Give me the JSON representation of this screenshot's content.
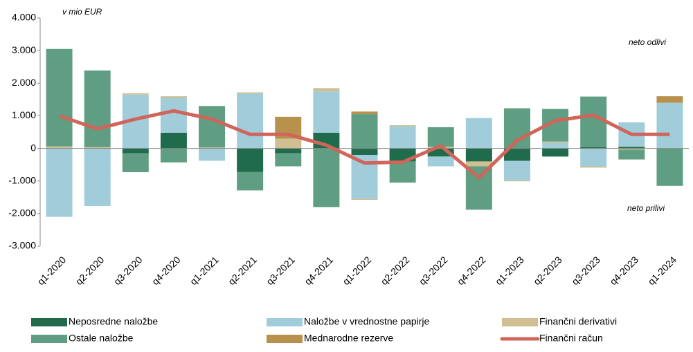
{
  "chart_data": {
    "type": "bar",
    "annotations": {
      "unit": "v mio EUR",
      "top": "neto odlivi",
      "bottom": "neto prilivi"
    },
    "categories": [
      "q1-2020",
      "q2-2020",
      "q3-2020",
      "q4-2020",
      "q1-2021",
      "q2-2021",
      "q3-2021",
      "q4-2021",
      "q1-2022",
      "q2-2022",
      "q3-2022",
      "q4-2022",
      "q1-2023",
      "q2-2023",
      "q3-2023",
      "q4-2023",
      "q1-2024"
    ],
    "series": [
      {
        "name": "Neposredne naložbe",
        "color": "#1f6b4b",
        "values": [
          0,
          0,
          -150,
          480,
          0,
          -720,
          -150,
          480,
          -200,
          -400,
          -250,
          -400,
          -380,
          -250,
          40,
          50,
          0
        ]
      },
      {
        "name": "Naložbe v vrednostne papirje",
        "color": "#a1cddb",
        "values": [
          -2100,
          -1770,
          1650,
          1070,
          -380,
          1680,
          0,
          1270,
          -1350,
          680,
          -300,
          930,
          -600,
          170,
          -550,
          750,
          1400
        ]
      },
      {
        "name": "Finančni derivativi",
        "color": "#cfbf91",
        "values": [
          60,
          40,
          40,
          50,
          30,
          40,
          300,
          100,
          -30,
          30,
          50,
          -150,
          -30,
          40,
          -40,
          -40,
          0
        ]
      },
      {
        "name": "Ostale naložbe",
        "color": "#5f9e82",
        "values": [
          2990,
          2350,
          -580,
          -430,
          1270,
          -570,
          -400,
          -1800,
          1050,
          -650,
          600,
          -1330,
          1230,
          1000,
          1550,
          -300,
          -1150
        ]
      },
      {
        "name": "Mednarodne rezerve",
        "color": "#b8924c",
        "values": [
          0,
          0,
          0,
          0,
          0,
          0,
          670,
          0,
          80,
          0,
          0,
          0,
          0,
          0,
          0,
          0,
          200
        ]
      }
    ],
    "line": {
      "name": "Finančni račun",
      "color": "#d0655a",
      "values": [
        1000,
        600,
        900,
        1150,
        900,
        430,
        430,
        100,
        -450,
        -420,
        80,
        -900,
        250,
        850,
        1020,
        430,
        430
      ]
    },
    "ylim": [
      -3000,
      4000
    ],
    "yticks": [
      {
        "value": -3000,
        "label": "-3.000"
      },
      {
        "value": -2000,
        "label": "-2.000"
      },
      {
        "value": -1000,
        "label": "-1.000"
      },
      0,
      {
        "value": 1000,
        "label": "1.000"
      },
      {
        "value": 2000,
        "label": "2.000"
      },
      {
        "value": 3000,
        "label": "3.000"
      },
      {
        "value": 4000,
        "label": "4.000"
      }
    ],
    "grid": false
  }
}
